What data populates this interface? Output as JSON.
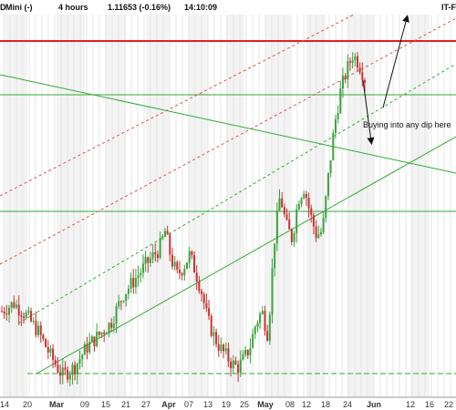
{
  "header": {
    "instrument": "Mini (-)",
    "prefix": "D",
    "timeframe": "4 hours",
    "price": "1.11653 (-0.16%)",
    "time": "14:10:09",
    "source": "IT-F"
  },
  "chart_data": {
    "type": "candlestick",
    "title": "",
    "x_ticks": [
      {
        "label": "14",
        "bold": false
      },
      {
        "label": "20",
        "bold": false
      },
      {
        "label": "Mar",
        "bold": true
      },
      {
        "label": "09",
        "bold": false
      },
      {
        "label": "15",
        "bold": false
      },
      {
        "label": "21",
        "bold": false
      },
      {
        "label": "27",
        "bold": false
      },
      {
        "label": "Apr",
        "bold": true
      },
      {
        "label": "07",
        "bold": false
      },
      {
        "label": "13",
        "bold": false
      },
      {
        "label": "19",
        "bold": false
      },
      {
        "label": "25",
        "bold": false
      },
      {
        "label": "May",
        "bold": true
      },
      {
        "label": "08",
        "bold": false
      },
      {
        "label": "12",
        "bold": false
      },
      {
        "label": "18",
        "bold": false
      },
      {
        "label": "24",
        "bold": false
      },
      {
        "label": "Jun",
        "bold": true
      },
      {
        "label": "12",
        "bold": false
      },
      {
        "label": "16",
        "bold": false
      },
      {
        "label": "22",
        "bold": false
      }
    ],
    "price_path": [
      [
        0,
        0.62
      ],
      [
        4,
        0.66
      ],
      [
        8,
        0.6
      ],
      [
        12,
        0.52
      ],
      [
        16,
        0.4
      ],
      [
        20,
        0.3
      ],
      [
        24,
        0.34
      ],
      [
        28,
        0.44
      ],
      [
        32,
        0.5
      ],
      [
        36,
        0.56
      ],
      [
        40,
        0.7
      ],
      [
        44,
        0.78
      ],
      [
        48,
        0.86
      ],
      [
        52,
        0.93
      ],
      [
        54,
        1.02
      ],
      [
        56,
        0.88
      ],
      [
        58,
        0.8
      ],
      [
        60,
        0.84
      ],
      [
        62,
        0.9
      ],
      [
        64,
        0.82
      ],
      [
        66,
        0.72
      ],
      [
        68,
        0.58
      ],
      [
        70,
        0.5
      ],
      [
        72,
        0.44
      ],
      [
        74,
        0.4
      ],
      [
        76,
        0.36
      ],
      [
        78,
        0.34
      ],
      [
        80,
        0.38
      ],
      [
        82,
        0.44
      ],
      [
        84,
        0.56
      ],
      [
        86,
        0.62
      ],
      [
        88,
        0.5
      ],
      [
        90,
        0.96
      ],
      [
        92,
        1.2
      ],
      [
        94,
        1.05
      ],
      [
        96,
        0.98
      ],
      [
        98,
        1.18
      ],
      [
        100,
        1.24
      ],
      [
        102,
        1.1
      ],
      [
        104,
        1.0
      ],
      [
        106,
        1.02
      ],
      [
        108,
        1.3
      ],
      [
        110,
        1.55
      ],
      [
        112,
        1.72
      ],
      [
        114,
        1.82
      ],
      [
        116,
        1.9
      ],
      [
        118,
        1.86
      ],
      [
        120,
        1.78
      ]
    ],
    "annotations": [
      "Buying into any dip here"
    ],
    "colors": {
      "up": "#3aa33a",
      "down": "#c83232",
      "resistance": "#e02020",
      "trend": "#33aa33"
    }
  }
}
